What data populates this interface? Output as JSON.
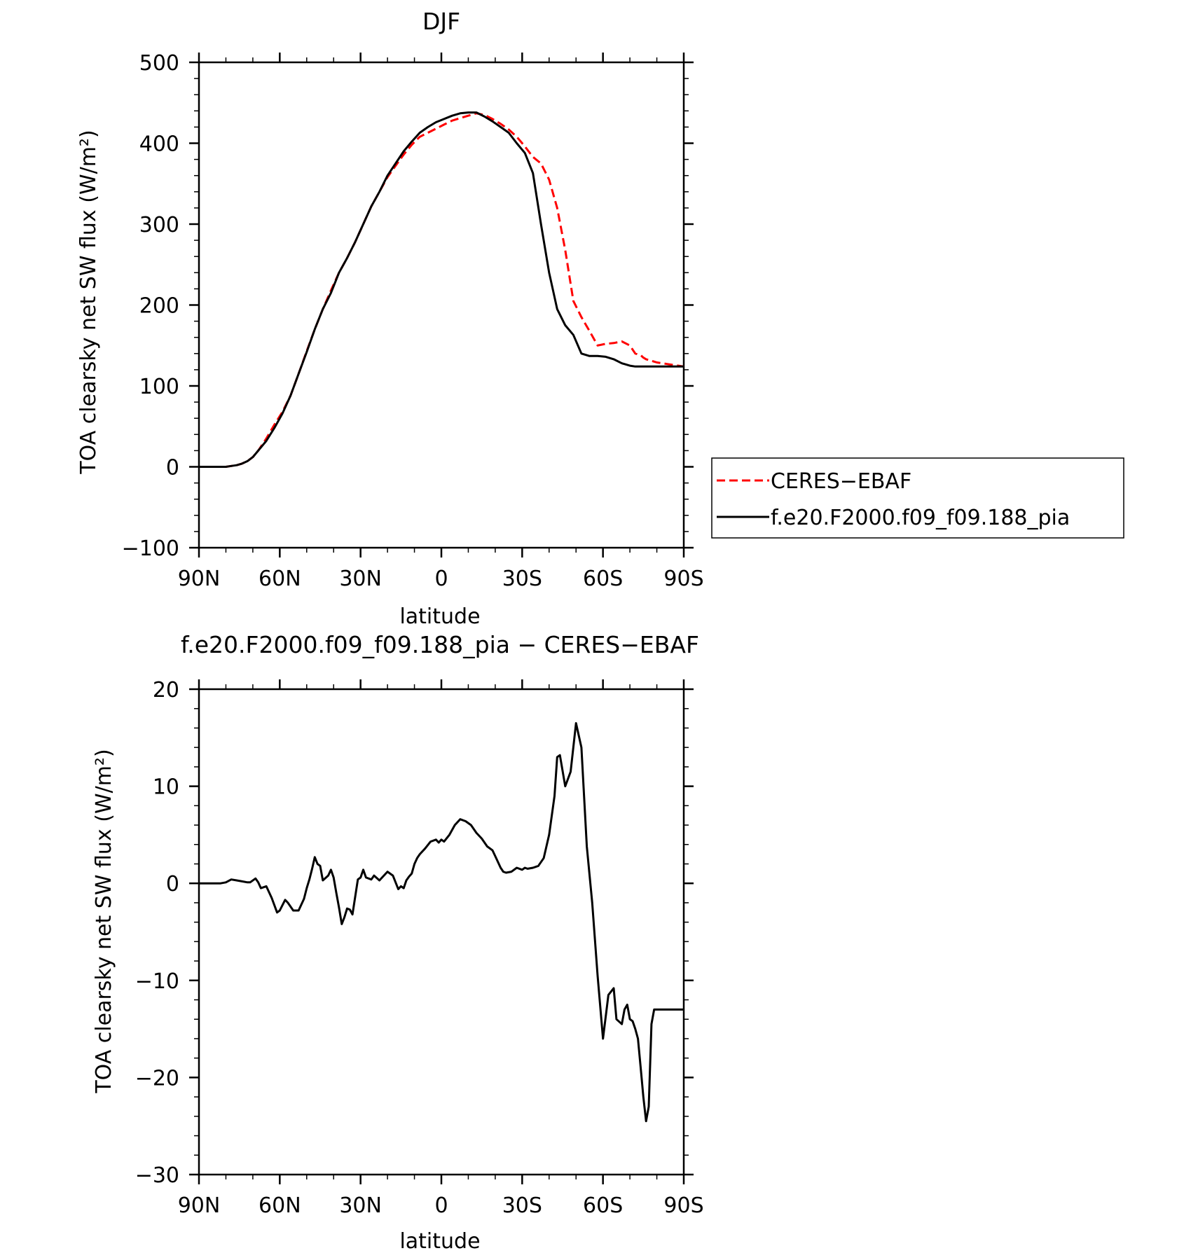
{
  "chart_data": [
    {
      "type": "line",
      "title": "DJF",
      "xlabel": "latitude",
      "ylabel": "TOA clearsky net SW flux (W/m²)",
      "ylim": [
        -100,
        500
      ],
      "yticks": [
        "500",
        "400",
        "300",
        "200",
        "100",
        "0",
        "−100"
      ],
      "xticks": [
        "90N",
        "60N",
        "30N",
        "0",
        "30S",
        "60S",
        "90S"
      ],
      "xlim": [
        0,
        180
      ],
      "legend": "outside-right",
      "series": [
        {
          "name": "CERES−EBAF",
          "color": "#ff0000",
          "dash": "dashed",
          "x": [
            0,
            5,
            8,
            10,
            12,
            14,
            16,
            18,
            20,
            22,
            25,
            28,
            31,
            34,
            37,
            40,
            43,
            46,
            49,
            52,
            55,
            58,
            61,
            64,
            67,
            70,
            73,
            76,
            79,
            82,
            85,
            88,
            91,
            94,
            97,
            100,
            103,
            106,
            109,
            112,
            115,
            118,
            121,
            124,
            127,
            130,
            133,
            136,
            139,
            142,
            145,
            148,
            151,
            154,
            157,
            160,
            162,
            164,
            165,
            166,
            167,
            168,
            169,
            170,
            172,
            174,
            176,
            178,
            180
          ],
          "y": [
            0,
            0,
            0,
            0,
            1,
            2,
            4,
            7,
            12,
            20,
            35,
            52,
            68,
            88,
            115,
            143,
            170,
            195,
            218,
            240,
            258,
            278,
            300,
            322,
            340,
            358,
            372,
            386,
            398,
            408,
            413,
            418,
            423,
            428,
            431,
            434,
            437,
            435,
            430,
            424,
            417,
            408,
            396,
            383,
            375,
            355,
            320,
            268,
            205,
            185,
            168,
            150,
            152,
            153,
            155,
            150,
            140,
            138,
            135,
            133,
            132,
            131,
            130,
            129,
            128,
            127,
            126,
            125,
            124
          ]
        },
        {
          "name": "f.e20.F2000.f09_f09.188_pia",
          "color": "#000000",
          "dash": "solid",
          "x": [
            0,
            5,
            8,
            10,
            12,
            14,
            16,
            18,
            20,
            22,
            25,
            28,
            31,
            34,
            37,
            40,
            43,
            46,
            49,
            52,
            55,
            58,
            61,
            64,
            67,
            70,
            73,
            76,
            79,
            82,
            85,
            88,
            91,
            94,
            97,
            100,
            103,
            106,
            109,
            112,
            115,
            118,
            121,
            124,
            127,
            130,
            133,
            136,
            139,
            142,
            145,
            148,
            151,
            154,
            157,
            160,
            162,
            164,
            165,
            166,
            167,
            168,
            169,
            170,
            172,
            174,
            176,
            178,
            180
          ],
          "y": [
            0,
            0,
            0,
            0,
            1,
            2,
            4,
            7,
            12,
            20,
            32,
            48,
            66,
            88,
            115,
            142,
            170,
            195,
            215,
            240,
            258,
            278,
            300,
            322,
            340,
            360,
            375,
            390,
            402,
            413,
            420,
            426,
            430,
            434,
            437,
            438,
            438,
            433,
            427,
            420,
            413,
            400,
            388,
            363,
            300,
            240,
            195,
            175,
            163,
            140,
            137,
            137,
            136,
            133,
            128,
            125,
            124,
            124,
            124,
            124,
            124,
            124,
            124,
            124,
            124,
            124,
            124,
            124,
            124
          ]
        }
      ]
    },
    {
      "type": "line",
      "title": "f.e20.F2000.f09_f09.188_pia − CERES−EBAF",
      "xlabel": "latitude",
      "ylabel": "TOA clearsky net SW flux (W/m²)",
      "ylim": [
        -30,
        20
      ],
      "yticks": [
        "20",
        "10",
        "0",
        "−10",
        "−20",
        "−30"
      ],
      "xticks": [
        "90N",
        "60N",
        "30N",
        "0",
        "30S",
        "60S",
        "90S"
      ],
      "xlim": [
        0,
        180
      ],
      "series": [
        {
          "color": "#000000",
          "dash": "solid",
          "x": [
            0,
            4,
            8,
            10,
            12,
            14,
            16,
            18,
            19,
            21,
            22,
            23,
            25,
            27,
            29,
            30,
            32,
            33,
            35,
            37,
            39,
            40,
            41,
            42,
            43,
            44,
            45,
            46,
            48,
            49,
            50,
            51,
            52,
            53,
            54,
            55,
            56,
            57,
            59,
            60,
            61,
            62,
            64,
            65,
            67,
            68,
            70,
            72,
            74,
            75,
            76,
            77,
            78,
            79,
            80,
            81,
            82,
            84,
            86,
            88,
            89,
            90,
            91,
            93,
            95,
            97,
            99,
            101,
            103,
            105,
            107,
            109,
            110,
            112,
            113,
            114,
            116,
            118,
            120,
            121,
            122,
            124,
            126,
            128,
            130,
            132,
            133,
            134,
            136,
            138,
            140,
            142,
            144,
            146,
            148,
            150,
            152,
            154,
            155,
            157,
            158,
            159,
            160,
            161,
            162,
            163,
            164,
            165,
            166,
            167,
            168,
            169,
            170,
            171,
            172,
            173,
            174,
            175,
            176,
            177,
            178,
            179,
            180
          ],
          "y": [
            0,
            0,
            0,
            0.1,
            0.4,
            0.3,
            0.2,
            0.1,
            0.1,
            0.5,
            0.1,
            -0.5,
            -0.3,
            -1.5,
            -3.0,
            -2.8,
            -1.7,
            -2.0,
            -2.8,
            -2.8,
            -1.6,
            -0.5,
            0.4,
            1.5,
            2.7,
            2.0,
            1.8,
            0.3,
            0.8,
            1.4,
            0.6,
            -1.0,
            -2.5,
            -4.2,
            -3.5,
            -2.6,
            -2.7,
            -3.2,
            0.4,
            0.6,
            1.4,
            0.6,
            0.4,
            0.8,
            0.3,
            0.6,
            1.2,
            0.8,
            -0.6,
            -0.3,
            -0.5,
            0.3,
            0.7,
            1.0,
            2.0,
            2.6,
            3.0,
            3.6,
            4.3,
            4.5,
            4.2,
            4.5,
            4.3,
            5.0,
            6.0,
            6.6,
            6.4,
            6.0,
            5.2,
            4.6,
            3.8,
            3.4,
            2.8,
            1.6,
            1.2,
            1.1,
            1.2,
            1.6,
            1.4,
            1.6,
            1.5,
            1.6,
            1.8,
            2.6,
            5.0,
            9.0,
            13.0,
            13.2,
            10.0,
            11.5,
            16.5,
            14.0,
            3.8,
            -2.0,
            -9.5,
            -16.0,
            -11.5,
            -10.8,
            -14.0,
            -14.5,
            -13.0,
            -12.5,
            -14.0,
            -14.2,
            -15.0,
            -16.0,
            -19.0,
            -22.0,
            -24.5,
            -23.0,
            -14.5,
            -13.0,
            -13.0,
            -13.0,
            -13.0,
            -13.0,
            -13.0,
            -13.0,
            -13.0,
            -13.0,
            -13.0,
            -13.0,
            -13.0
          ]
        }
      ]
    }
  ]
}
